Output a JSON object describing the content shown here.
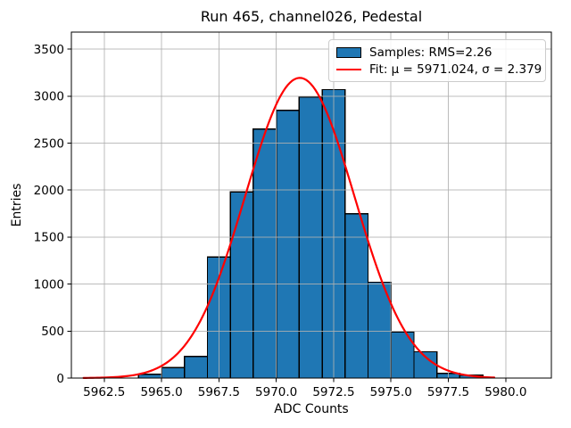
{
  "chart_data": {
    "type": "bar",
    "subtype": "histogram-with-gaussian-fit",
    "title": "Run 465, channel026, Pedestal",
    "xlabel": "ADC Counts",
    "ylabel": "Entries",
    "xlim": [
      5961.07,
      5981.99
    ],
    "ylim": [
      0,
      3682
    ],
    "xticks": [
      5962.5,
      5965.0,
      5967.5,
      5970.0,
      5972.5,
      5975.0,
      5977.5,
      5980.0
    ],
    "xtick_labels": [
      "5962.5",
      "5965.0",
      "5967.5",
      "5970.0",
      "5972.5",
      "5975.0",
      "5977.5",
      "5980.0"
    ],
    "yticks": [
      0,
      500,
      1000,
      1500,
      2000,
      2500,
      3000,
      3500
    ],
    "ytick_labels": [
      "0",
      "500",
      "1000",
      "1500",
      "2000",
      "2500",
      "3000",
      "3500"
    ],
    "grid": true,
    "bin_start": 5964,
    "bin_width": 1,
    "bin_edges": [
      5964,
      5965,
      5966,
      5967,
      5968,
      5969,
      5970,
      5971,
      5972,
      5973,
      5974,
      5975,
      5976,
      5977,
      5978,
      5979
    ],
    "counts": [
      40,
      110,
      230,
      1290,
      1980,
      2650,
      2850,
      2990,
      3070,
      1750,
      1020,
      490,
      280,
      50,
      30
    ],
    "fit": {
      "mu": 5971.024,
      "sigma": 2.379,
      "amplitude": 3195,
      "x_start": 5961.6,
      "x_end": 5979.5
    },
    "legend": {
      "position": "upper right",
      "entries": [
        {
          "type": "patch",
          "label": "Samples: RMS=2.26"
        },
        {
          "type": "line",
          "label": "Fit: μ = 5971.024, σ = 2.379"
        }
      ]
    },
    "colors": {
      "bar_fill": "#1f77b4",
      "bar_edge": "#000000",
      "fit_line": "#ff0000",
      "grid": "#b0b0b0",
      "spine": "#000000",
      "text": "#000000"
    }
  }
}
